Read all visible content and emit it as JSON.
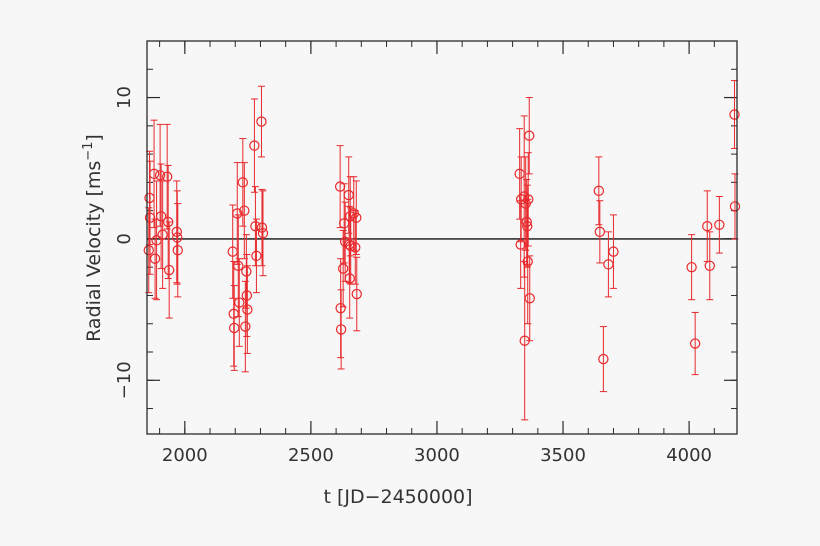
{
  "chart_data": {
    "type": "scatter",
    "title": "",
    "xlabel": "t [JD−2450000]",
    "ylabel_main": "Radial Velocity [ms",
    "ylabel_sup": "−1",
    "ylabel_end": "]",
    "xlim": [
      1850,
      4190
    ],
    "ylim": [
      -13.8,
      14
    ],
    "xticks": [
      2000,
      2500,
      3000,
      3500,
      4000
    ],
    "yticks": [
      -10,
      0,
      10
    ],
    "xtick_labels": [
      "2000",
      "2500",
      "3000",
      "3500",
      "4000"
    ],
    "ytick_labels": [
      "−10",
      "0",
      "10"
    ],
    "x_minor_step": 100,
    "y_minor_step": 2,
    "grid": false,
    "reference_line_y": 0,
    "colors": {
      "marker": "#e8282b",
      "axis": "#2a2a2a",
      "background": "#f7f7f7"
    },
    "series": [
      {
        "points": [
          [
            1857,
            -0.8,
            3.0
          ],
          [
            1860,
            2.9,
            3.3
          ],
          [
            1862,
            1.5,
            4.0
          ],
          [
            1878,
            4.6,
            3.8
          ],
          [
            1882,
            -1.4,
            2.8
          ],
          [
            1888,
            -0.1,
            4.2
          ],
          [
            1902,
            4.5,
            3.6
          ],
          [
            1906,
            1.6,
            3.7
          ],
          [
            1912,
            0.3,
            3.8
          ],
          [
            1930,
            4.4,
            3.7
          ],
          [
            1934,
            1.2,
            4.0
          ],
          [
            1938,
            -2.2,
            3.4
          ],
          [
            1968,
            0.5,
            3.6
          ],
          [
            1970,
            0.1,
            3.3
          ],
          [
            1972,
            -0.8,
            3.3
          ],
          [
            2190,
            -0.9,
            3.3
          ],
          [
            2194,
            -5.3,
            3.7
          ],
          [
            2196,
            -6.3,
            3.0
          ],
          [
            2208,
            1.8,
            3.6
          ],
          [
            2212,
            -1.9,
            3.6
          ],
          [
            2216,
            -4.5,
            3.1
          ],
          [
            2230,
            4.0,
            3.1
          ],
          [
            2236,
            2.0,
            3.4
          ],
          [
            2240,
            -6.2,
            3.2
          ],
          [
            2244,
            -2.3,
            2.6
          ],
          [
            2246,
            -4.0,
            2.9
          ],
          [
            2248,
            -5.0,
            3.1
          ],
          [
            2276,
            6.6,
            3.3
          ],
          [
            2280,
            0.9,
            2.8
          ],
          [
            2284,
            -1.2,
            2.6
          ],
          [
            2304,
            8.3,
            2.5
          ],
          [
            2306,
            0.8,
            2.7
          ],
          [
            2310,
            0.4,
            3.0
          ],
          [
            2616,
            3.7,
            2.9
          ],
          [
            2618,
            -4.9,
            3.5
          ],
          [
            2620,
            -6.4,
            2.8
          ],
          [
            2628,
            -2.1,
            2.7
          ],
          [
            2632,
            1.1,
            2.8
          ],
          [
            2636,
            -0.2,
            2.8
          ],
          [
            2650,
            3.1,
            2.7
          ],
          [
            2652,
            -0.4,
            2.7
          ],
          [
            2654,
            -2.8,
            2.8
          ],
          [
            2656,
            1.6,
            2.8
          ],
          [
            2658,
            -0.5,
            2.7
          ],
          [
            2670,
            1.8,
            2.6
          ],
          [
            2676,
            -0.6,
            2.6
          ],
          [
            2680,
            1.5,
            2.6
          ],
          [
            2682,
            -3.9,
            2.6
          ],
          [
            3328,
            4.6,
            3.2
          ],
          [
            3332,
            -0.4,
            3.1
          ],
          [
            3334,
            2.8,
            3.0
          ],
          [
            3346,
            3.0,
            5.7
          ],
          [
            3348,
            -7.2,
            5.6
          ],
          [
            3352,
            2.5,
            3.3
          ],
          [
            3356,
            1.2,
            3.0
          ],
          [
            3358,
            0.9,
            2.9
          ],
          [
            3360,
            -1.6,
            4.4
          ],
          [
            3362,
            2.8,
            3.3
          ],
          [
            3366,
            7.3,
            2.7
          ],
          [
            3368,
            -4.2,
            3.0
          ],
          [
            3642,
            3.4,
            2.4
          ],
          [
            3646,
            0.5,
            2.2
          ],
          [
            3660,
            -8.5,
            2.3
          ],
          [
            3680,
            -1.8,
            2.3
          ],
          [
            3700,
            -0.9,
            2.6
          ],
          [
            4010,
            -2.0,
            2.3
          ],
          [
            4024,
            -7.4,
            2.2
          ],
          [
            4072,
            0.9,
            2.5
          ],
          [
            4082,
            -1.9,
            2.4
          ],
          [
            4120,
            1.0,
            2.0
          ],
          [
            4180,
            8.8,
            2.4
          ],
          [
            4182,
            2.3,
            2.3
          ]
        ]
      }
    ]
  }
}
